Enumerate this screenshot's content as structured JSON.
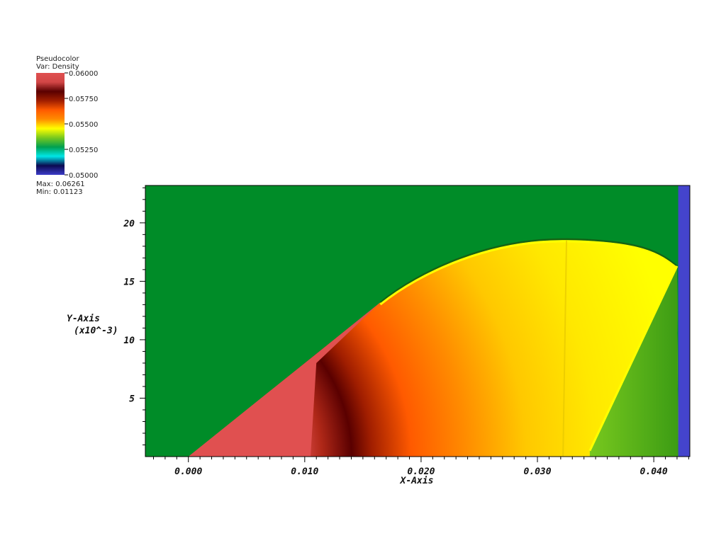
{
  "legend": {
    "plot_type": "Pseudocolor",
    "var_label": "Var: Density",
    "max_label": "Max: 0.06261",
    "min_label": "Min: 0.01123",
    "tick_labels": [
      "0.06000",
      "0.05750",
      "0.05500",
      "0.05250",
      "0.05000"
    ],
    "colormap": [
      "#3c3cc8",
      "#0a0a50",
      "#00e6e6",
      "#00a050",
      "#78c81e",
      "#ffff00",
      "#ff8c00",
      "#ff5a00",
      "#a01e00",
      "#5a0000",
      "#d24646",
      "#e05050"
    ]
  },
  "axes": {
    "x_title": "X-Axis",
    "y_title": "Y-Axis",
    "y_scale_note": "(x10^-3)",
    "x_tick_labels": [
      "0.000",
      "0.010",
      "0.020",
      "0.030",
      "0.040"
    ],
    "y_tick_labels": [
      "5",
      "10",
      "15",
      "20"
    ]
  },
  "colors": {
    "background_field": "#008c28",
    "wedge": "#e05050",
    "right_boundary": "#4444cc",
    "shock_yellow": "#ffff00"
  },
  "chart_data": {
    "type": "heatmap",
    "variable": "Density",
    "colorbar_range": [
      0.05,
      0.06
    ],
    "data_max": 0.06261,
    "data_min": 0.01123,
    "xlim": [
      -0.0037,
      0.0431
    ],
    "ylim": [
      0,
      23.2
    ],
    "x_ticks": [
      0.0,
      0.01,
      0.02,
      0.03,
      0.04
    ],
    "y_ticks": [
      5,
      10,
      15,
      20
    ],
    "wedge_line": {
      "x": [
        0.0,
        0.0165
      ],
      "y": [
        0.0,
        13.2
      ]
    },
    "bow_shock": {
      "x": [
        0.0165,
        0.0225,
        0.0325,
        0.0375,
        0.042
      ],
      "y": [
        13.2,
        16.8,
        18.6,
        18.0,
        16.3
      ]
    },
    "reflected_shock": {
      "x": [
        0.0345,
        0.042
      ],
      "y": [
        0.5,
        16.3
      ]
    },
    "boundary_x": 0.0421
  }
}
